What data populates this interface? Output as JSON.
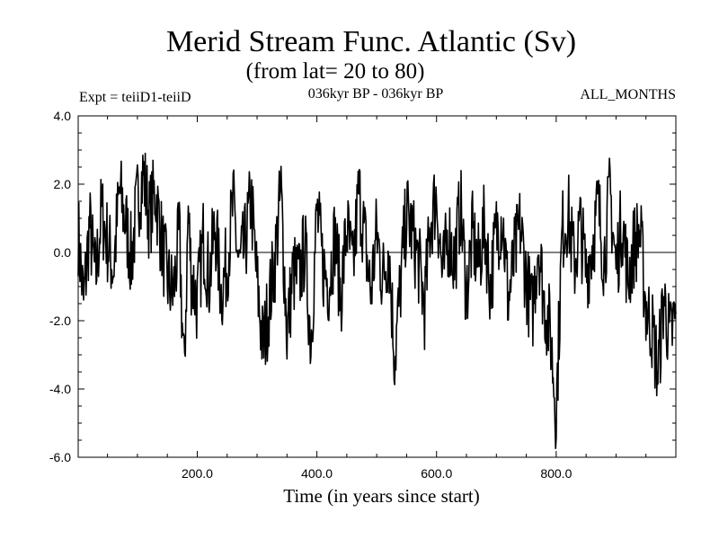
{
  "chart_data": {
    "type": "line",
    "title": "Merid Stream Func. Atlantic (Sv)",
    "subtitle": "(from lat= 20 to 80)",
    "period": "036kyr BP - 036kyr BP",
    "experiment": "Expt = teiiD1-teiiD",
    "months": "ALL_MONTHS",
    "xlabel": "Time (in years since start)",
    "ylabel": "",
    "xlim": [
      1,
      1000
    ],
    "ylim": [
      -6,
      4
    ],
    "xticks": [
      200,
      400,
      600,
      800
    ],
    "xtick_labels": [
      "200.0",
      "400.0",
      "600.0",
      "800.0"
    ],
    "yticks": [
      -6,
      -4,
      -2,
      0,
      2,
      4
    ],
    "ytick_labels": [
      "-6.0",
      "-4.0",
      "-2.0",
      "0.0",
      "2.0",
      "4.0"
    ],
    "zero_line": true,
    "grid": false,
    "line_color": "#000000",
    "series": [
      {
        "x": [
          1,
          10,
          20,
          30,
          40,
          50,
          60,
          70,
          80,
          90,
          100,
          110,
          120,
          130,
          140,
          150,
          160,
          170,
          178,
          185,
          190,
          200,
          210,
          220,
          230,
          240,
          250,
          260,
          270,
          280,
          290,
          300,
          310,
          320,
          330,
          340,
          350,
          360,
          370,
          380,
          390,
          400,
          410,
          420,
          430,
          440,
          450,
          460,
          470,
          480,
          490,
          500,
          510,
          520,
          530,
          540,
          550,
          560,
          570,
          580,
          590,
          600,
          610,
          620,
          630,
          640,
          650,
          660,
          670,
          680,
          690,
          700,
          710,
          720,
          730,
          740,
          750,
          760,
          770,
          780,
          790,
          800,
          810,
          820,
          830,
          840,
          850,
          860,
          870,
          880,
          890,
          900,
          910,
          920,
          930,
          940,
          950,
          960,
          970,
          980,
          990,
          1000
        ],
        "y": [
          0.6,
          -1.5,
          0.8,
          -0.8,
          1.2,
          0.3,
          -0.5,
          1.8,
          0.9,
          -0.2,
          1.5,
          2.3,
          1.0,
          1.8,
          0.4,
          -0.8,
          -1.2,
          0.5,
          -3.6,
          1.2,
          -0.6,
          -1.5,
          0.4,
          -0.8,
          0.8,
          -1.2,
          -0.3,
          1.4,
          -0.5,
          0.2,
          1.6,
          -0.9,
          -2.8,
          -1.5,
          -0.2,
          1.8,
          -2.4,
          -0.6,
          -0.8,
          0.2,
          -2.6,
          1.2,
          -0.4,
          -0.9,
          0.5,
          -1.3,
          0.8,
          -0.6,
          1.8,
          0.4,
          -1.2,
          0.6,
          -0.8,
          0.2,
          -3.1,
          -0.9,
          1.2,
          0.5,
          -0.3,
          -1.6,
          0.9,
          1.7,
          -0.8,
          0.6,
          -0.3,
          1.4,
          -1.2,
          0.5,
          -0.4,
          0.8,
          -1.0,
          0.6,
          1.1,
          -1.4,
          -0.2,
          0.8,
          -0.8,
          -1.8,
          0.4,
          -1.5,
          -2.3,
          -4.7,
          0.6,
          1.2,
          -0.4,
          0.8,
          -0.6,
          0.2,
          1.4,
          -0.2,
          1.8,
          -0.5,
          1.0,
          -0.8,
          0.2,
          0.6,
          -1.6,
          -2.2,
          -3.5,
          -1.3,
          -2.6,
          -1.8
        ]
      }
    ]
  }
}
